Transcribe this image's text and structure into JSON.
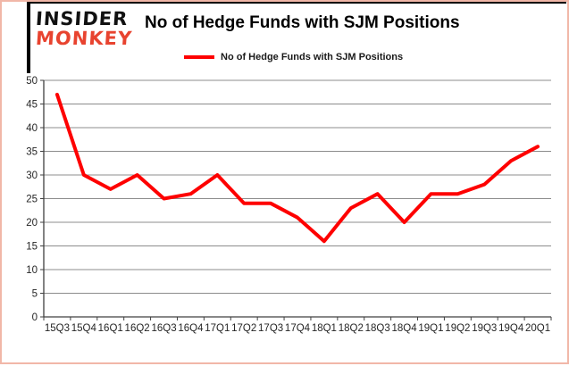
{
  "header": {
    "logo_line1": "INSIDER",
    "logo_line2": "MONKEY",
    "title": "No of Hedge Funds with SJM Positions"
  },
  "legend": {
    "label": "No of Hedge Funds with SJM Positions"
  },
  "colors": {
    "line": "#fe0000",
    "logo_black": "#111111",
    "logo_red": "#e8432f",
    "gridline": "#8c8c8c",
    "axis": "#404040",
    "axis_text": "#262626",
    "frame_border": "#f1b7a8"
  },
  "chart_data": {
    "type": "line",
    "title": "No of Hedge Funds with SJM Positions",
    "categories": [
      "15Q3",
      "15Q4",
      "16Q1",
      "16Q2",
      "16Q3",
      "16Q4",
      "17Q1",
      "17Q2",
      "17Q3",
      "17Q4",
      "18Q1",
      "18Q2",
      "18Q3",
      "18Q4",
      "19Q1",
      "19Q2",
      "19Q3",
      "19Q4",
      "20Q1"
    ],
    "series": [
      {
        "name": "No of Hedge Funds with SJM Positions",
        "values": [
          47,
          30,
          27,
          30,
          25,
          26,
          30,
          24,
          24,
          21,
          16,
          23,
          26,
          20,
          26,
          26,
          28,
          33,
          36
        ]
      }
    ],
    "xlabel": "",
    "ylabel": "",
    "ylim": [
      0,
      50
    ],
    "ytick_step": 5,
    "grid": true,
    "legend_position": "top"
  }
}
